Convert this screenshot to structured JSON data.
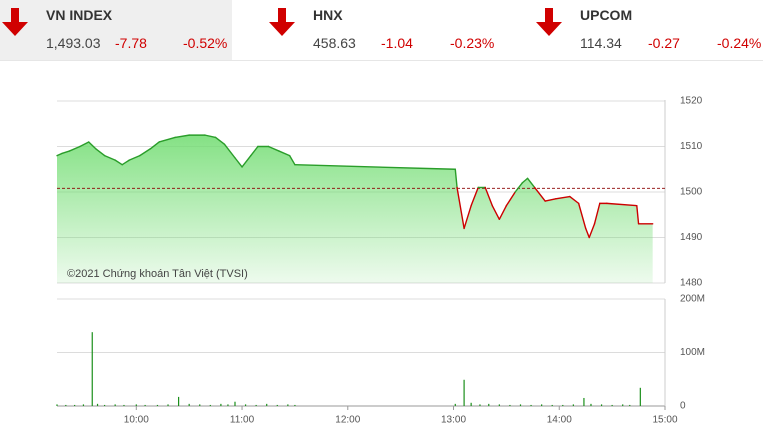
{
  "indices": [
    {
      "name": "VN INDEX",
      "value": "1,493.03",
      "change": "-7.78",
      "percent": "-0.52%"
    },
    {
      "name": "HNX",
      "value": "458.63",
      "change": "-1.04",
      "percent": "-0.23%"
    },
    {
      "name": "UPCOM",
      "value": "114.34",
      "change": "-0.27",
      "percent": "-0.24%"
    }
  ],
  "chart_data": [
    {
      "type": "line",
      "annotation": "©2021 Chứng khoán Tân Việt (TVSI)",
      "x": [
        555,
        558,
        562,
        568,
        573,
        577,
        582,
        588,
        592,
        596,
        602,
        608,
        613,
        622,
        630,
        639,
        645,
        650,
        656,
        660,
        665,
        669,
        675,
        681,
        687,
        690,
        781,
        782,
        786,
        790,
        794,
        798,
        802,
        806,
        810,
        815,
        819,
        822,
        826,
        832,
        838,
        846,
        851,
        855,
        857,
        860,
        863,
        867,
        884,
        885,
        893
      ],
      "values": [
        1508,
        1508.5,
        1509,
        1510,
        1511,
        1509.5,
        1508,
        1507,
        1506,
        1507,
        1508,
        1509.5,
        1511,
        1512,
        1512.5,
        1512.5,
        1512,
        1510.5,
        1507.5,
        1505.5,
        1508,
        1510,
        1510,
        1509,
        1508,
        1506,
        1505,
        1501,
        1492,
        1497,
        1501,
        1501,
        1497,
        1494,
        1497,
        1500,
        1502,
        1503,
        1501,
        1498,
        1498.5,
        1499,
        1497.5,
        1492,
        1490,
        1493,
        1497.5,
        1497.5,
        1497,
        1493,
        1493
      ],
      "reference": 1500.81,
      "up_color": "#2a9d2a",
      "down_color": "#cc0000",
      "reference_color": "#8b0000",
      "fill_color": "#6fdc6f",
      "xlim": [
        555,
        900
      ],
      "ylim": [
        1480,
        1520
      ],
      "yticks": [
        1480,
        1490,
        1500,
        1510,
        1520
      ],
      "grid": true
    },
    {
      "type": "bar",
      "x": [
        555,
        560,
        565,
        570,
        575,
        578,
        582,
        588,
        593,
        600,
        605,
        612,
        618,
        624,
        630,
        636,
        642,
        648,
        652,
        656,
        662,
        668,
        674,
        680,
        686,
        690,
        781,
        786,
        790,
        795,
        800,
        806,
        812,
        818,
        824,
        830,
        836,
        842,
        848,
        854,
        858,
        864,
        870,
        876,
        880,
        886
      ],
      "values": [
        3000000,
        2000000,
        2000000,
        3000000,
        138000000,
        4000000,
        2000000,
        3000000,
        2000000,
        3000000,
        2000000,
        2000000,
        3000000,
        17000000,
        4000000,
        3000000,
        2000000,
        4000000,
        3000000,
        8000000,
        3000000,
        2000000,
        4000000,
        2000000,
        3000000,
        2000000,
        4000000,
        49000000,
        6000000,
        3000000,
        4000000,
        3000000,
        2000000,
        3000000,
        2000000,
        3000000,
        2000000,
        2000000,
        3000000,
        15000000,
        4000000,
        3000000,
        2000000,
        3000000,
        2000000,
        34000000
      ],
      "color": "#1a8f1a",
      "xlim": [
        555,
        900
      ],
      "ylim": [
        0,
        200000000
      ],
      "yticks": [
        0,
        {
          "value": 100000000,
          "label": "100M"
        },
        {
          "value": 200000000,
          "label": "200M"
        }
      ],
      "xticks": [
        {
          "value": 600,
          "label": "10:00"
        },
        {
          "value": 660,
          "label": "11:00"
        },
        {
          "value": 720,
          "label": "12:00"
        },
        {
          "value": 780,
          "label": "13:00"
        },
        {
          "value": 840,
          "label": "14:00"
        },
        {
          "value": 900,
          "label": "15:00"
        }
      ],
      "grid": true
    }
  ]
}
